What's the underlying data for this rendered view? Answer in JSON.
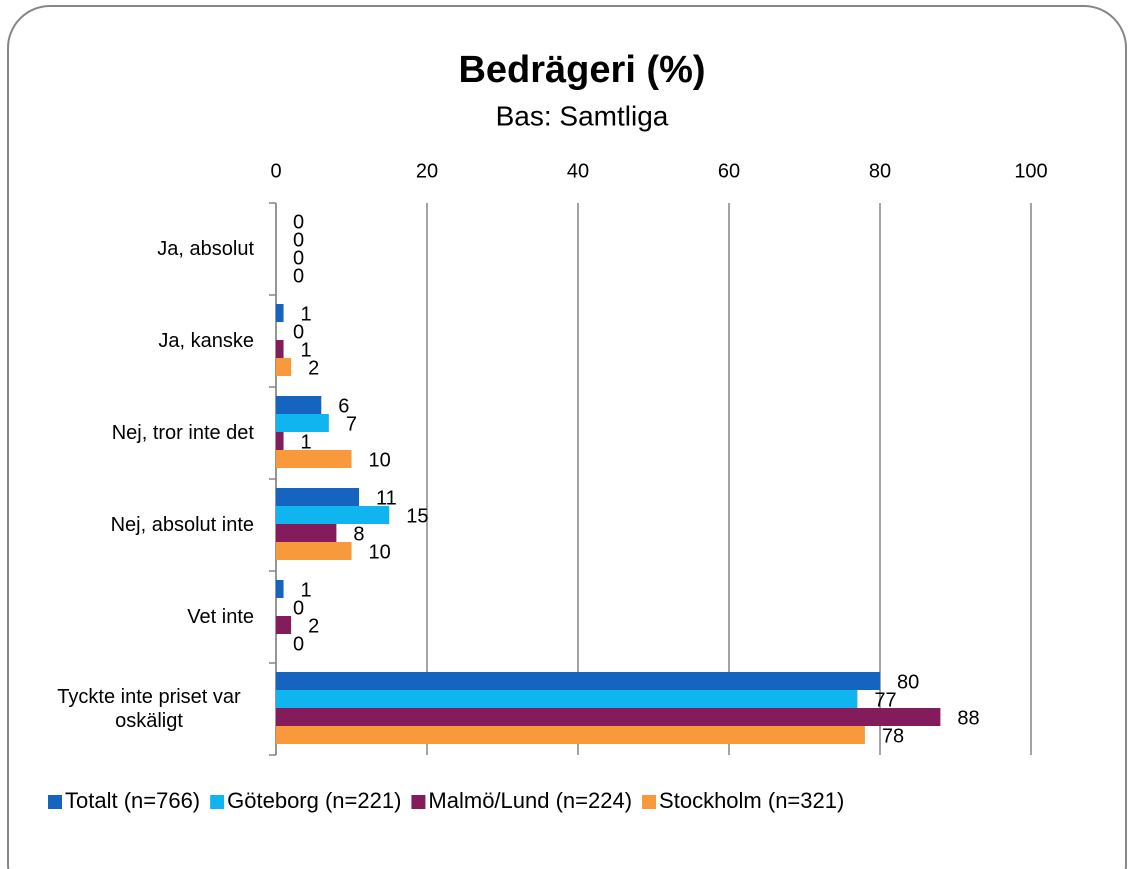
{
  "chart_data": {
    "type": "bar",
    "orientation": "horizontal",
    "title": "Bedrägeri (%)",
    "subtitle": "Bas: Samtliga",
    "categories": [
      "Ja, absolut",
      "Ja, kanske",
      "Nej, tror inte det",
      "Nej, absolut inte",
      "Vet inte",
      "Tyckte inte priset var oskäligt"
    ],
    "series": [
      {
        "name": "Totalt (n=766)",
        "color": "#1464c0",
        "values": [
          0,
          1,
          6,
          11,
          1,
          80
        ]
      },
      {
        "name": "Göteborg (n=221)",
        "color": "#10b4ee",
        "values": [
          0,
          0,
          7,
          15,
          0,
          77
        ]
      },
      {
        "name": "Malmö/Lund (n=224)",
        "color": "#841c5c",
        "values": [
          0,
          1,
          1,
          8,
          2,
          88
        ]
      },
      {
        "name": "Stockholm (n=321)",
        "color": "#f89a3c",
        "values": [
          0,
          2,
          10,
          10,
          0,
          78
        ]
      }
    ],
    "xlim": [
      0,
      100
    ],
    "xticks": [
      0,
      20,
      40,
      60,
      80,
      100
    ],
    "grid": true,
    "legend": "bottom"
  }
}
